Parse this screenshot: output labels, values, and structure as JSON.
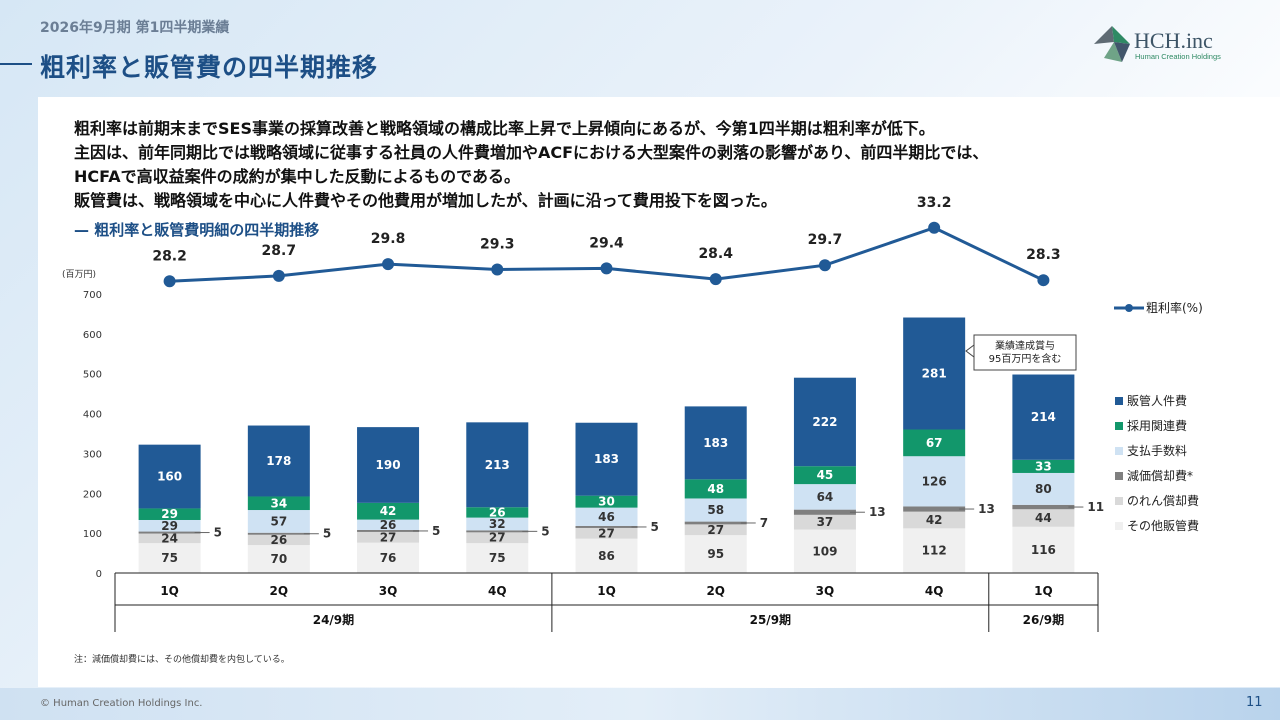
{
  "header": {
    "period": "2026年9月期 第1四半期業績",
    "title": "粗利率と販管費の四半期推移"
  },
  "logo": {
    "name": "HCH.inc",
    "sub": "Human Creation Holdings",
    "icon": "hch-leaf-logo-icon"
  },
  "summary": [
    "粗利率は前期末までSES事業の採算改善と戦略領域の構成比率上昇で上昇傾向にあるが、今第1四半期は粗利率が低下。",
    "主因は、前年同期比では戦略領域に従事する社員の人件費増加やACFにおける大型案件の剥落の影響があり、前四半期比では、",
    "HCFAで高収益案件の成約が集中した反動によるものである。",
    "販管費は、戦略領域を中心に人件費やその他費用が増加したが、計画に沿って費用投下を図った。"
  ],
  "section_title": "—  粗利率と販管費明細の四半期推移",
  "chart_data": {
    "type": "bar",
    "stacked": true,
    "y_unit": "(百万円)",
    "ylim": [
      0,
      700
    ],
    "yticks": [
      0,
      100,
      200,
      300,
      400,
      500,
      600,
      700
    ],
    "categories": [
      "1Q",
      "2Q",
      "3Q",
      "4Q",
      "1Q",
      "2Q",
      "3Q",
      "4Q",
      "1Q"
    ],
    "groups": [
      {
        "label": "24/9期",
        "count": 4
      },
      {
        "label": "25/9期",
        "count": 4
      },
      {
        "label": "26/9期",
        "count": 1
      }
    ],
    "series": [
      {
        "name": "その他販管費",
        "color": "#f0f0f0",
        "label_color": "#333333",
        "values": [
          75,
          70,
          76,
          75,
          86,
          95,
          109,
          112,
          116
        ]
      },
      {
        "name": "のれん償却費",
        "color": "#d9d9d9",
        "label_color": "#333333",
        "values": [
          24,
          26,
          27,
          27,
          27,
          27,
          37,
          42,
          44
        ]
      },
      {
        "name": "減価償却費*",
        "color": "#7f7f7f",
        "label_color": "#333333",
        "values": [
          5,
          5,
          5,
          5,
          5,
          7,
          13,
          13,
          11
        ],
        "label_outside": true
      },
      {
        "name": "支払手数料",
        "color": "#cfe2f3",
        "label_color": "#333333",
        "values": [
          29,
          57,
          26,
          32,
          46,
          58,
          64,
          126,
          80
        ]
      },
      {
        "name": "採用関連費",
        "color": "#12976b",
        "label_color": "#ffffff",
        "values": [
          29,
          34,
          42,
          26,
          30,
          48,
          45,
          67,
          33
        ]
      },
      {
        "name": "販管人件費",
        "color": "#215a96",
        "label_color": "#ffffff",
        "values": [
          160,
          178,
          190,
          213,
          183,
          183,
          222,
          281,
          214
        ]
      }
    ],
    "line": {
      "name": "粗利率(%)",
      "color": "#215a96",
      "values": [
        28.2,
        28.7,
        29.8,
        29.3,
        29.4,
        28.4,
        29.7,
        33.2,
        28.3
      ]
    },
    "annotation": "業績達成賞与\n95百万円を含む",
    "legend_position": "right"
  },
  "note": "注：減価償却費には、その他償却費を内包している。",
  "footer": {
    "copyright": "© Human Creation Holdings Inc.",
    "page": "11"
  }
}
